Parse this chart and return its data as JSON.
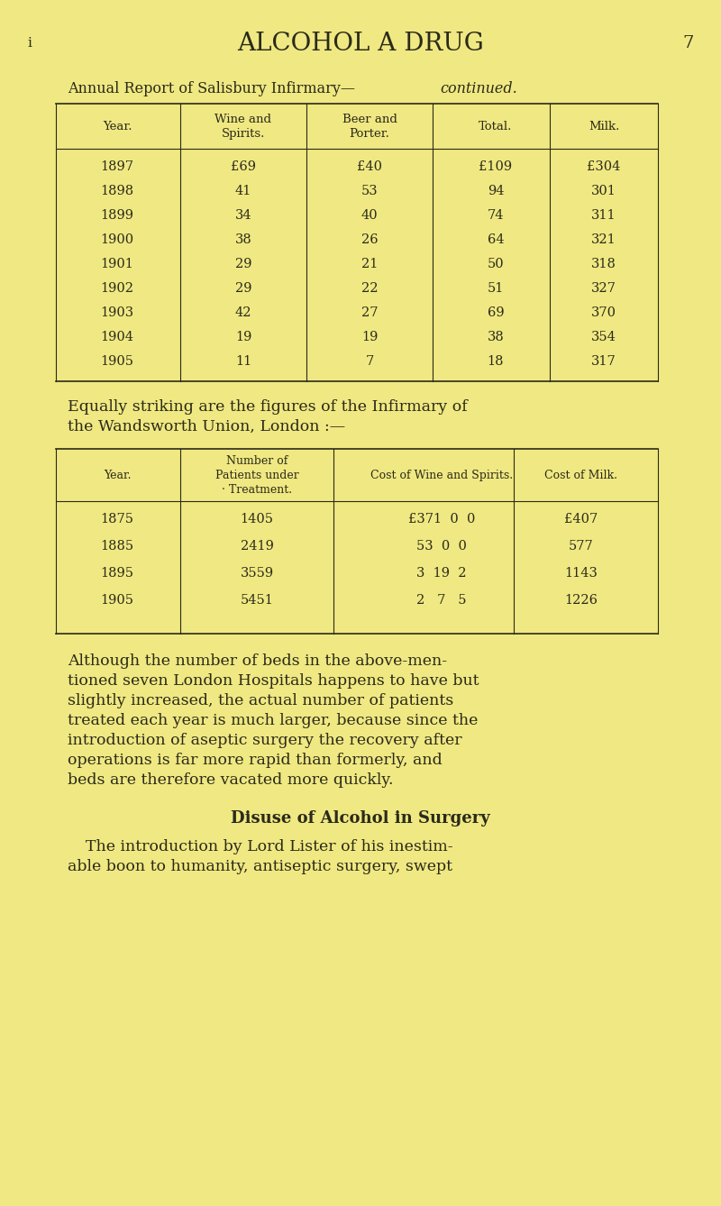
{
  "bg_color": "#f0e882",
  "text_color": "#2a2a1a",
  "page_number": "7",
  "chapter_marker": "i",
  "title": "ALCOHOL A DRUG",
  "subtitle_roman": "Annual Report of Salisbury Infirmary—",
  "subtitle_italic": "continued.",
  "table1_headers": [
    "Year.",
    "Wine and\nSpirits.",
    "Beer and\nPorter.",
    "Total.",
    "Milk."
  ],
  "table1_rows": [
    [
      "1897",
      "£69",
      "£40",
      "£109",
      "£304"
    ],
    [
      "1898",
      "41",
      "53",
      "94",
      "301"
    ],
    [
      "1899",
      "34",
      "40",
      "74",
      "311"
    ],
    [
      "1900",
      "38",
      "26",
      "64",
      "321"
    ],
    [
      "1901",
      "29",
      "21",
      "50",
      "318"
    ],
    [
      "1902",
      "29",
      "22",
      "51",
      "327"
    ],
    [
      "1903",
      "42",
      "27",
      "69",
      "370"
    ],
    [
      "1904",
      "19",
      "19",
      "38",
      "354"
    ],
    [
      "1905",
      "11",
      "7",
      "18",
      "317"
    ]
  ],
  "para1_line1": "Equally striking are the figures of the Infirmary of",
  "para1_line2": "the Wandsworth Union, London :—",
  "table2_headers": [
    "Year.",
    "Number of\nPatients under\n· Treatment.",
    "Cost of Wine and Spirits.",
    "Cost of Milk."
  ],
  "table2_rows": [
    [
      "1875",
      "1405",
      "£371  0  0",
      "£407"
    ],
    [
      "1885",
      "2419",
      "53  0  0",
      "577"
    ],
    [
      "1895",
      "3559",
      "3  19  2",
      "1143"
    ],
    [
      "1905",
      "5451",
      "2   7   5",
      "1226"
    ]
  ],
  "para2": "Although the number of beds in the above-men-\ntioned seven London Hospitals happens to have but\nslightly increased, the actual number of patients\ntreated each year is much larger, because since the\nintroduction of aseptic surgery the recovery after\noperations is far more rapid than formerly, and\nbeds are therefore vacated more quickly.",
  "section_heading": "Disuse of Alcohol in Surgery",
  "para3": "The introduction by Lord Lister of his inestim-\nable boon to humanity, antiseptic surgery, swept"
}
